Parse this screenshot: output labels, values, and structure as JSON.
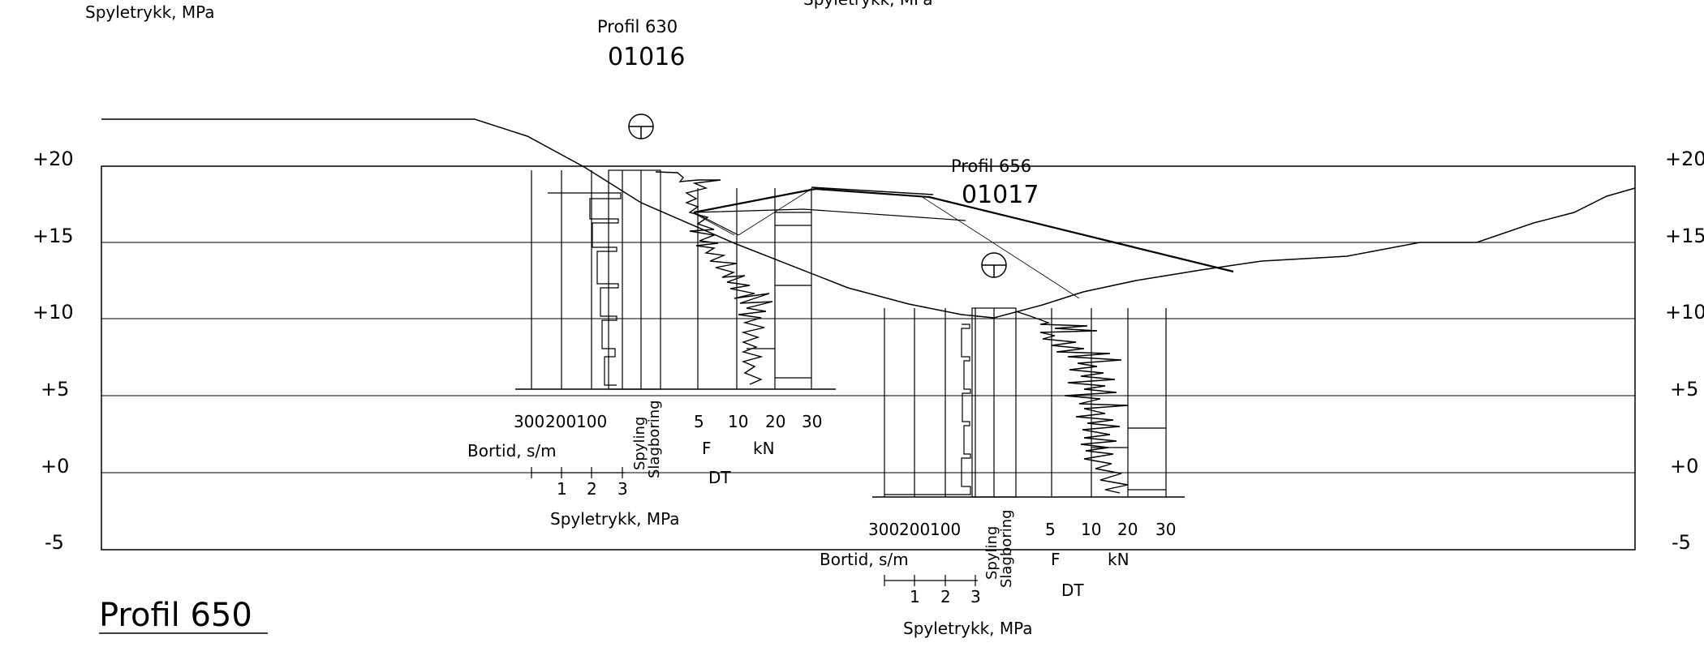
{
  "top_left_cut_label": "Spyletrykk, MPa",
  "top_center_cut_label": "Spyletrykk, MPa",
  "section_title": "Profil 650",
  "elevation_labels": [
    "+20",
    "+15",
    "+10",
    "+5",
    "+0",
    "-5"
  ],
  "boreholes": [
    {
      "profile_label": "Profil 630",
      "borehole_id": "01016",
      "bortid_ticks": [
        "300",
        "200",
        "100"
      ],
      "spyling_label": "Spyling",
      "slagboring_label": "Slagboring",
      "force_ticks": [
        "5",
        "10",
        "20",
        "30"
      ],
      "f_label": "F",
      "kn_label": "kN",
      "dt_label": "DT",
      "bortid_label": "Bortid, s/m",
      "pressure_ticks": [
        "1",
        "2",
        "3"
      ],
      "pressure_label": "Spyletrykk, MPa"
    },
    {
      "profile_label": "Profil 656",
      "borehole_id": "01017",
      "bortid_ticks": [
        "300",
        "200",
        "100"
      ],
      "spyling_label": "Spyling",
      "slagboring_label": "Slagboring",
      "force_ticks": [
        "5",
        "10",
        "20",
        "30"
      ],
      "f_label": "F",
      "kn_label": "kN",
      "dt_label": "DT",
      "bortid_label": "Bortid, s/m",
      "pressure_ticks": [
        "1",
        "2",
        "3"
      ],
      "pressure_label": "Spyletrykk, MPa"
    }
  ],
  "colors": {
    "ink": "#000000",
    "background": "#ffffff"
  }
}
